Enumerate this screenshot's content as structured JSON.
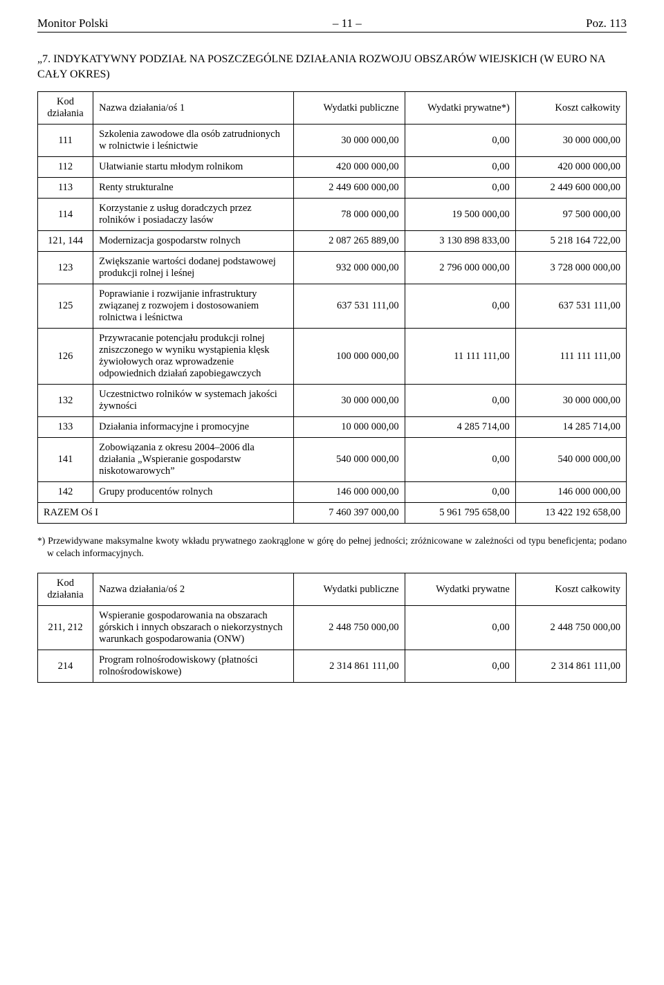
{
  "header": {
    "left": "Monitor Polski",
    "center": "– 11 –",
    "right": "Poz. 113"
  },
  "section_title": "„7. INDYKATYWNY PODZIAŁ NA POSZCZEGÓLNE DZIAŁANIA ROZWOJU OBSZARÓW WIEJSKICH (W EURO NA CAŁY OKRES)",
  "table1": {
    "head": [
      "Kod działania",
      "Nazwa działania/oś 1",
      "Wydatki publiczne",
      "Wydatki prywatne*)",
      "Koszt całkowity"
    ],
    "rows": [
      {
        "code": "111",
        "name": "Szkolenia zawodowe dla osób zatrudnionych w rolnictwie i leśnictwie",
        "pub": "30 000 000,00",
        "priv": "0,00",
        "tot": "30 000 000,00"
      },
      {
        "code": "112",
        "name": "Ułatwianie startu młodym rolnikom",
        "pub": "420 000 000,00",
        "priv": "0,00",
        "tot": "420 000 000,00"
      },
      {
        "code": "113",
        "name": "Renty strukturalne",
        "pub": "2 449 600 000,00",
        "priv": "0,00",
        "tot": "2 449 600 000,00"
      },
      {
        "code": "114",
        "name": "Korzystanie z usług doradczych przez rolników i posiadaczy lasów",
        "pub": "78 000 000,00",
        "priv": "19 500 000,00",
        "tot": "97 500 000,00"
      },
      {
        "code": "121, 144",
        "name": "Modernizacja gospodarstw rolnych",
        "pub": "2 087 265 889,00",
        "priv": "3 130 898 833,00",
        "tot": "5 218 164 722,00"
      },
      {
        "code": "123",
        "name": "Zwiększanie wartości dodanej podstawowej produkcji rolnej i leśnej",
        "pub": "932 000 000,00",
        "priv": "2 796 000 000,00",
        "tot": "3 728 000 000,00"
      },
      {
        "code": "125",
        "name": "Poprawianie i rozwijanie infrastruktury związanej z rozwojem i dostosowaniem rolnictwa i leśnictwa",
        "pub": "637 531 111,00",
        "priv": "0,00",
        "tot": "637 531 111,00"
      },
      {
        "code": "126",
        "name": "Przywracanie potencjału produkcji rolnej zniszczonego w wyniku wystąpienia klęsk żywiołowych oraz wprowadzenie odpowiednich działań zapobiegawczych",
        "pub": "100 000 000,00",
        "priv": "11 111 111,00",
        "tot": "111 111 111,00"
      },
      {
        "code": "132",
        "name": "Uczestnictwo rolników w systemach jakości żywności",
        "pub": "30 000 000,00",
        "priv": "0,00",
        "tot": "30 000 000,00"
      },
      {
        "code": "133",
        "name": "Działania informacyjne i promocyjne",
        "pub": "10 000 000,00",
        "priv": "4 285 714,00",
        "tot": "14 285 714,00"
      },
      {
        "code": "141",
        "name": "Zobowiązania z okresu 2004–2006 dla działania „Wspieranie gospodarstw niskotowarowych”",
        "pub": "540 000 000,00",
        "priv": "0,00",
        "tot": "540 000 000,00"
      },
      {
        "code": "142",
        "name": "Grupy producentów rolnych",
        "pub": "146 000 000,00",
        "priv": "0,00",
        "tot": "146 000 000,00"
      }
    ],
    "sum": {
      "label": "RAZEM Oś I",
      "pub": "7 460 397 000,00",
      "priv": "5 961 795 658,00",
      "tot": "13 422 192 658,00"
    }
  },
  "footnote": "*) Przewidywane maksymalne kwoty wkładu prywatnego zaokrąglone w górę do pełnej jedności; zróżnicowane w zależności od typu beneficjenta; podano w celach informacyjnych.",
  "table2": {
    "head": [
      "Kod działania",
      "Nazwa działania/oś 2",
      "Wydatki publiczne",
      "Wydatki prywatne",
      "Koszt całkowity"
    ],
    "rows": [
      {
        "code": "211, 212",
        "name": "Wspieranie gospodarowania na obszarach górskich i innych obszarach o niekorzystnych warunkach gospodarowania (ONW)",
        "pub": "2 448 750 000,00",
        "priv": "0,00",
        "tot": "2 448 750 000,00"
      },
      {
        "code": "214",
        "name": "Program rolnośrodowiskowy (płatności rolnośrodowiskowe)",
        "pub": "2 314 861 111,00",
        "priv": "0,00",
        "tot": "2 314 861 111,00"
      }
    ]
  }
}
